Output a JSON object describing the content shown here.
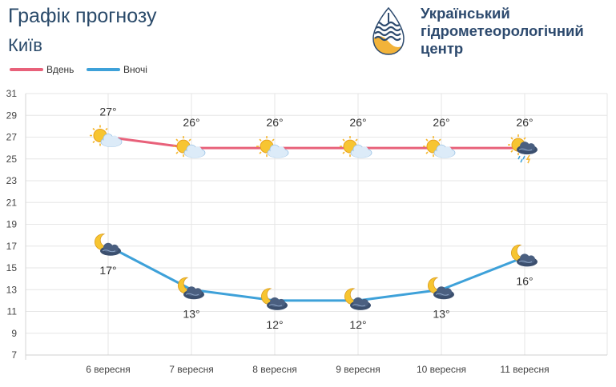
{
  "header": {
    "title": "Графік прогнозу",
    "city": "Київ"
  },
  "organization": {
    "line1": "Український",
    "line2": "гідрометеорологічний",
    "line3": "центр"
  },
  "colors": {
    "day": "#e8617a",
    "night": "#3ea1d9",
    "title": "#2a4a6a",
    "grid": "#e6e6e6"
  },
  "chart_data": {
    "type": "line",
    "categories": [
      "6 вересня",
      "7 вересня",
      "8 вересня",
      "9 вересня",
      "10 вересня",
      "11 вересня"
    ],
    "series": [
      {
        "name": "Вдень",
        "values": [
          27,
          26,
          26,
          26,
          26,
          26
        ],
        "labels": [
          "27°",
          "26°",
          "26°",
          "26°",
          "26°",
          "26°"
        ],
        "icons": [
          "sun-cloud-icon",
          "sun-cloud-icon",
          "sun-cloud-icon",
          "sun-cloud-icon",
          "sun-cloud-icon",
          "sun-rain-thunder-icon"
        ]
      },
      {
        "name": "Вночі",
        "values": [
          17,
          13,
          12,
          12,
          13,
          16
        ],
        "labels": [
          "17°",
          "13°",
          "12°",
          "12°",
          "13°",
          "16°"
        ],
        "icons": [
          "moon-cloud-icon",
          "moon-cloud-icon",
          "moon-cloud-icon",
          "moon-cloud-icon",
          "moon-cloud-icon",
          "moon-cloud-icon"
        ]
      }
    ],
    "yticks": [
      7,
      9,
      11,
      13,
      15,
      17,
      19,
      21,
      23,
      25,
      27,
      29,
      31
    ],
    "ylim": [
      7,
      31
    ],
    "grid": true,
    "legend": "top-left"
  }
}
